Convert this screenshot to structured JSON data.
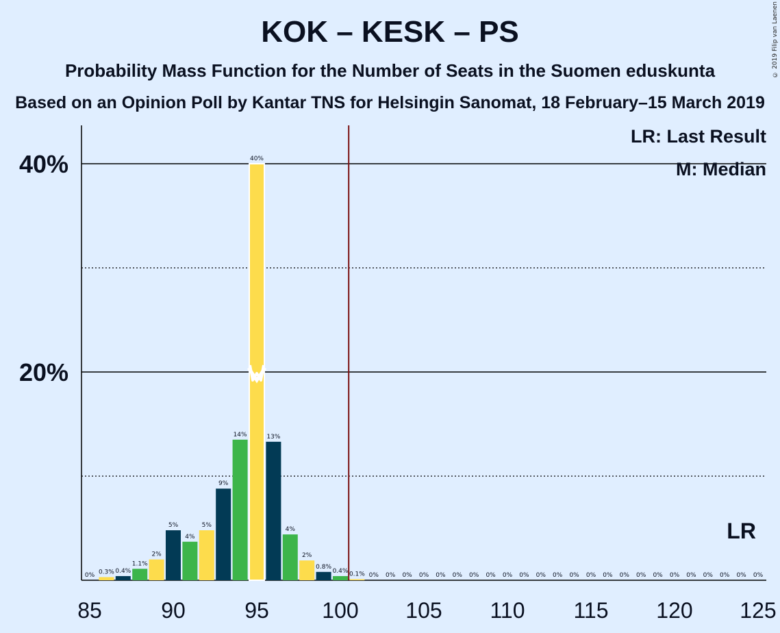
{
  "header": {
    "title": "KOK – KESK – PS",
    "subtitle": "Probability Mass Function for the Number of Seats in the Suomen eduskunta",
    "subtitle2": "Based on an Opinion Poll by Kantar TNS for Helsingin Sanomat, 18 February–15 March 2019",
    "copyright": "© 2019 Filip van Laenen"
  },
  "legend": {
    "last_result": "LR: Last Result",
    "median": "M: Median"
  },
  "chart_data": {
    "type": "bar",
    "title": "KOK – KESK – PS",
    "xlabel": "",
    "ylabel": "",
    "x_ticks": [
      85,
      90,
      95,
      100,
      105,
      110,
      115,
      120,
      125
    ],
    "y_ticks": [
      "20%",
      "40%"
    ],
    "ylim": [
      0,
      0.437
    ],
    "grid": "solid at 20% and 40%, dotted at 10% and 30%",
    "seats": [
      85,
      86,
      87,
      88,
      89,
      90,
      91,
      92,
      93,
      94,
      95,
      96,
      97,
      98,
      99,
      100,
      101,
      102,
      103,
      104,
      105,
      106,
      107,
      108,
      109,
      110,
      111,
      112,
      113,
      114,
      115,
      116,
      117,
      118,
      119,
      120,
      121,
      122,
      123,
      124,
      125
    ],
    "values": [
      0,
      0.003,
      0.004,
      0.011,
      0.02,
      0.048,
      0.037,
      0.048,
      0.088,
      0.135,
      0.4,
      0.133,
      0.044,
      0.019,
      0.008,
      0.004,
      0.001,
      0,
      0,
      0,
      0,
      0,
      0,
      0,
      0,
      0,
      0,
      0,
      0,
      0,
      0,
      0,
      0,
      0,
      0,
      0,
      0,
      0,
      0,
      0,
      0
    ],
    "labels": [
      "0%",
      "0.3%",
      "0.4%",
      "1.1%",
      "2%",
      "5%",
      "4%",
      "5%",
      "9%",
      "14%",
      "40%",
      "13%",
      "4%",
      "2%",
      "0.8%",
      "0.4%",
      "0.1%",
      "0%",
      "0%",
      "0%",
      "0%",
      "0%",
      "0%",
      "0%",
      "0%",
      "0%",
      "0%",
      "0%",
      "0%",
      "0%",
      "0%",
      "0%",
      "0%",
      "0%",
      "0%",
      "0%",
      "0%",
      "0%",
      "0%",
      "0%",
      "0%"
    ],
    "median": 95,
    "last_result": 124,
    "last_result_label": "LR",
    "majority_line": 100.5,
    "colors": {
      "dark": "#023a55",
      "yellow": "#fddc4c",
      "green": "#3db54a",
      "majority": "#7a1010",
      "background": "#e0eeff"
    }
  }
}
